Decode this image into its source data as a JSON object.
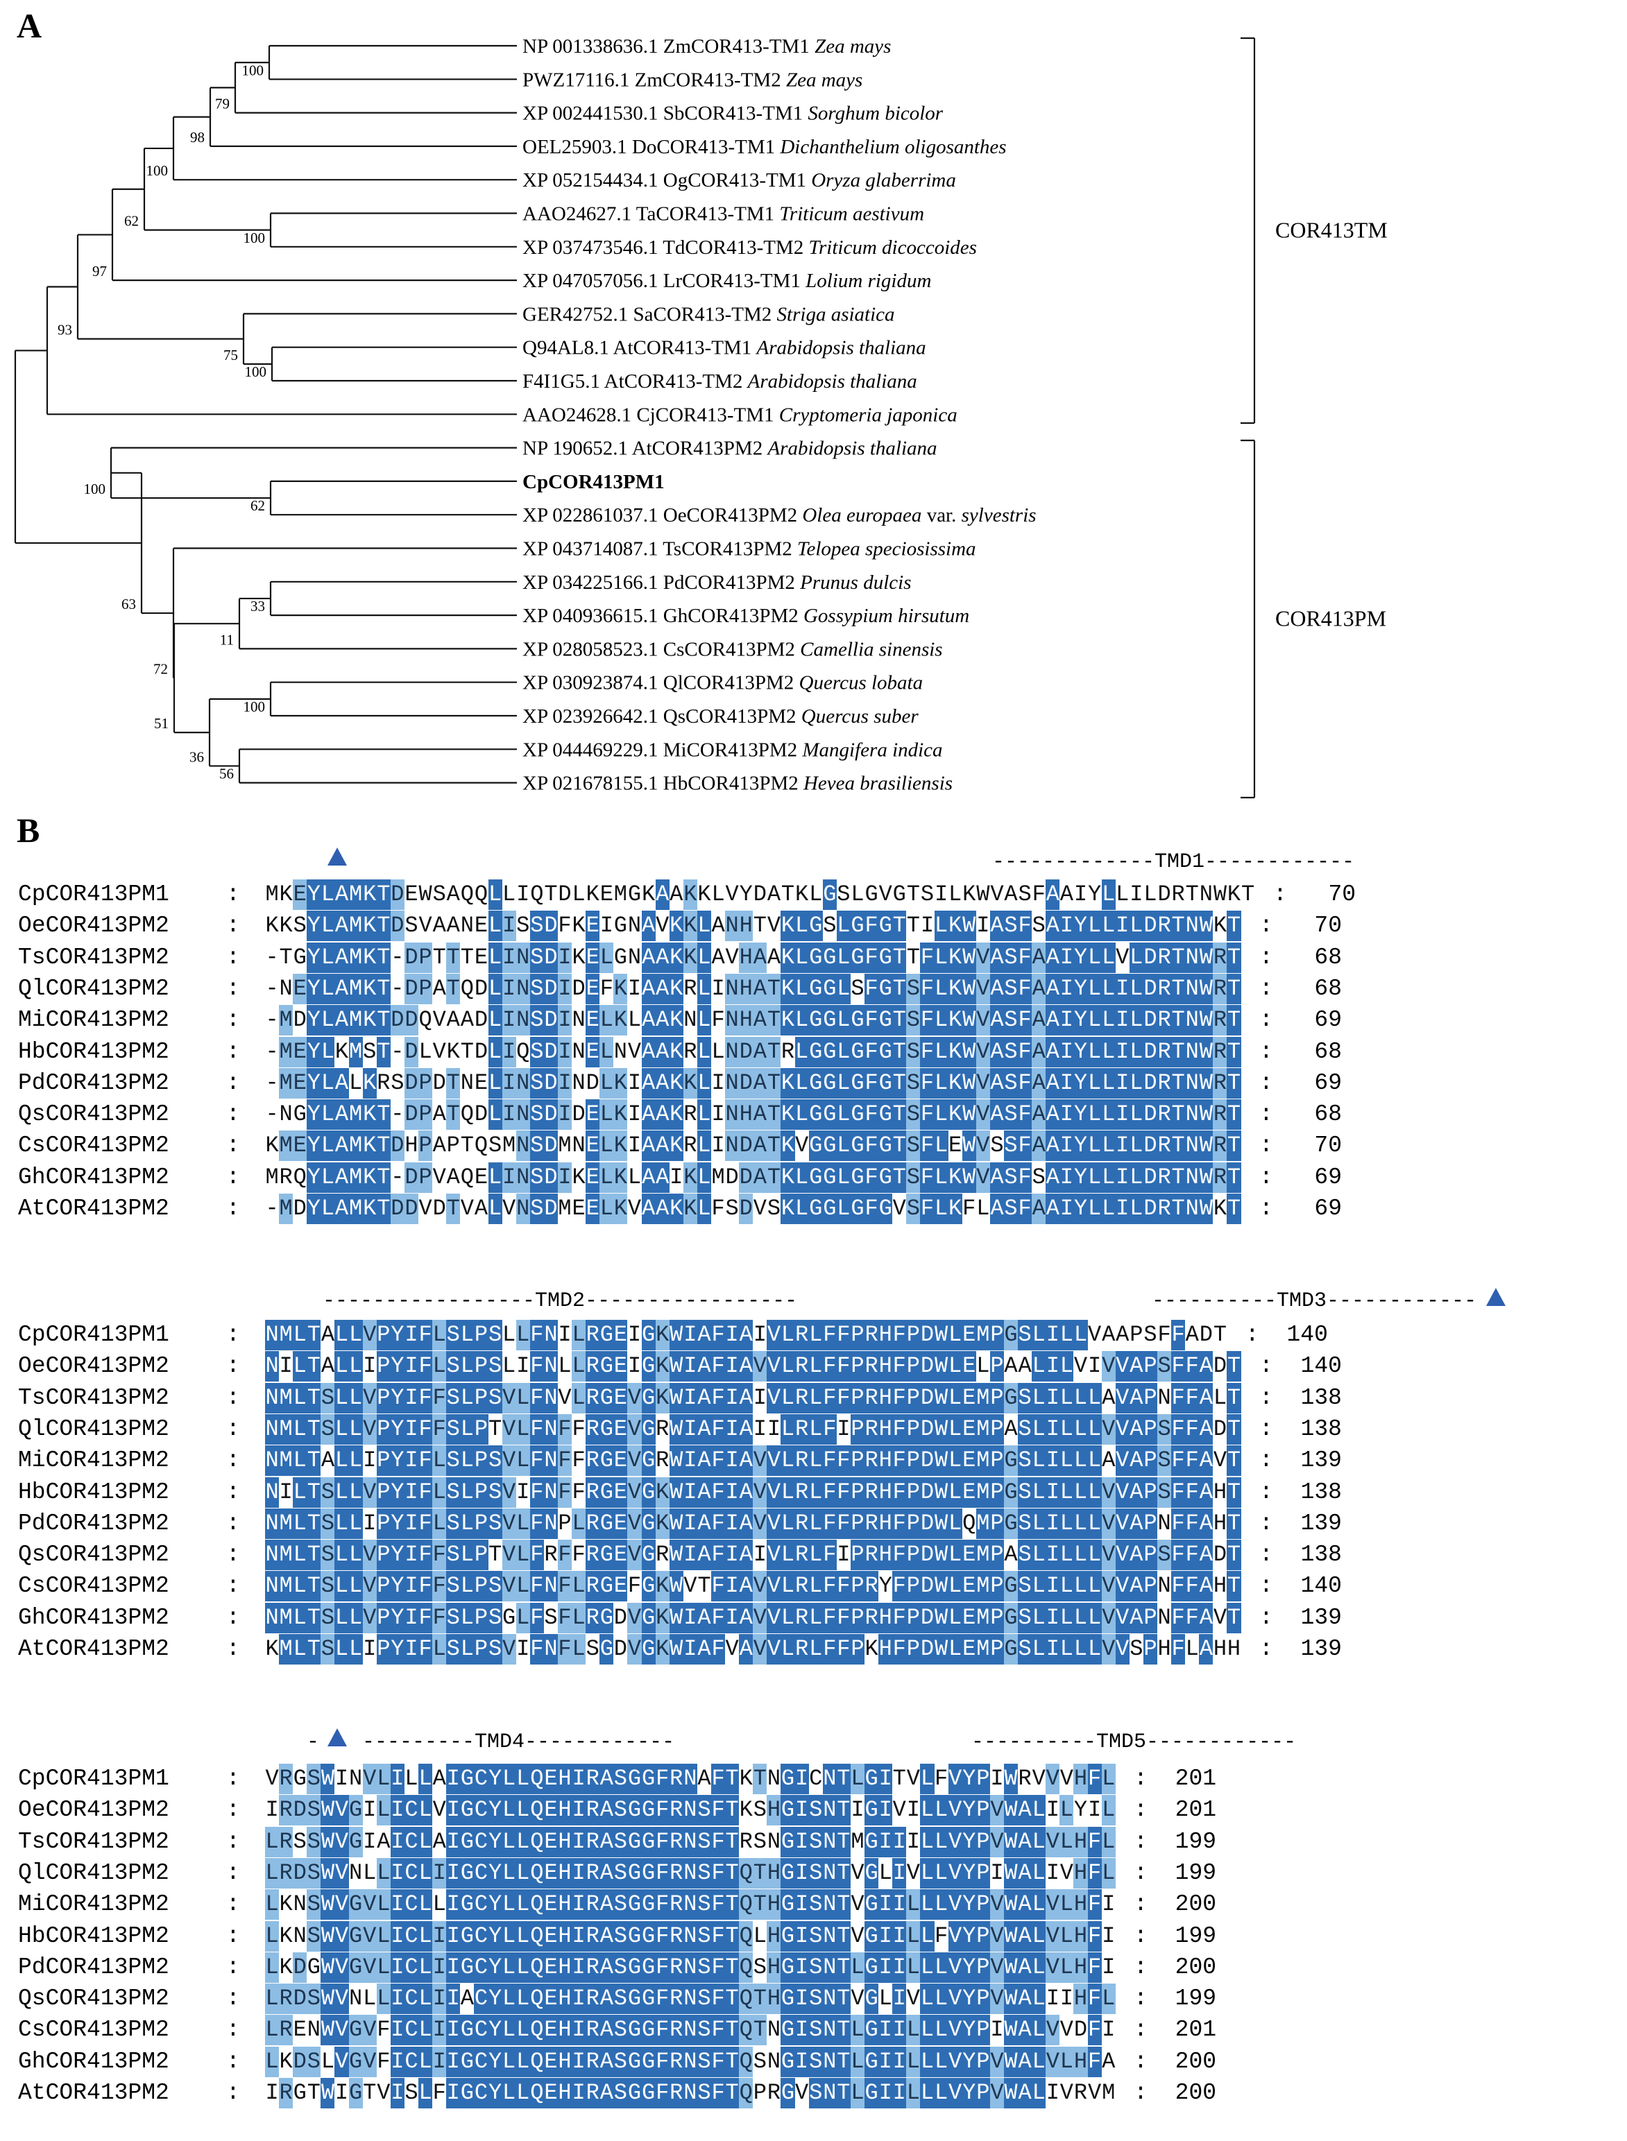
{
  "figure": {
    "panel_a_label": "A",
    "panel_b_label": "B",
    "groups": {
      "tm_label": "COR413TM",
      "pm_label": "COR413PM"
    }
  },
  "tree": {
    "leaves": [
      {
        "acc": "NP 001338636.1",
        "gene": "ZmCOR413-TM1",
        "species": "Zea mays"
      },
      {
        "acc": "PWZ17116.1",
        "gene": "ZmCOR413-TM2",
        "species": "Zea mays"
      },
      {
        "acc": "XP 002441530.1",
        "gene": "SbCOR413-TM1",
        "species": "Sorghum bicolor"
      },
      {
        "acc": "OEL25903.1",
        "gene": "DoCOR413-TM1",
        "species": "Dichanthelium oligosanthes"
      },
      {
        "acc": "XP 052154434.1",
        "gene": "OgCOR413-TM1",
        "species": "Oryza glaberrima"
      },
      {
        "acc": "AAO24627.1",
        "gene": "TaCOR413-TM1",
        "species": "Triticum aestivum"
      },
      {
        "acc": "XP 037473546.1",
        "gene": "TdCOR413-TM2",
        "species": "Triticum dicoccoides"
      },
      {
        "acc": "XP 047057056.1",
        "gene": "LrCOR413-TM1",
        "species": "Lolium rigidum"
      },
      {
        "acc": "GER42752.1",
        "gene": "SaCOR413-TM2",
        "species": "Striga asiatica"
      },
      {
        "acc": "Q94AL8.1",
        "gene": "AtCOR413-TM1",
        "species": "Arabidopsis thaliana"
      },
      {
        "acc": "F4I1G5.1",
        "gene": "AtCOR413-TM2",
        "species": "Arabidopsis thaliana"
      },
      {
        "acc": "AAO24628.1",
        "gene": "CjCOR413-TM1",
        "species": "Cryptomeria japonica"
      },
      {
        "acc": "NP 190652.1",
        "gene": "AtCOR413PM2",
        "species": "Arabidopsis thaliana"
      },
      {
        "acc": "",
        "gene": "CpCOR413PM1",
        "species": "",
        "bold": true
      },
      {
        "acc": "XP 022861037.1",
        "gene": "OeCOR413PM2",
        "species": "Olea europaea",
        "suffix": "var.",
        "species2": "sylvestris"
      },
      {
        "acc": "XP 043714087.1",
        "gene": "TsCOR413PM2",
        "species": "Telopea speciosissima"
      },
      {
        "acc": "XP 034225166.1",
        "gene": "PdCOR413PM2",
        "species": "Prunus dulcis"
      },
      {
        "acc": "XP 040936615.1",
        "gene": "GhCOR413PM2",
        "species": "Gossypium hirsutum"
      },
      {
        "acc": "XP 028058523.1",
        "gene": "CsCOR413PM2",
        "species": "Camellia sinensis"
      },
      {
        "acc": "XP 030923874.1",
        "gene": "QlCOR413PM2",
        "species": "Quercus lobata"
      },
      {
        "acc": "XP 023926642.1",
        "gene": "QsCOR413PM2",
        "species": "Quercus suber"
      },
      {
        "acc": "XP 044469229.1",
        "gene": "MiCOR413PM2",
        "species": "Mangifera indica"
      },
      {
        "acc": "XP 021678155.1",
        "gene": "HbCOR413PM2",
        "species": "Hevea brasiliensis"
      }
    ],
    "bootstrap": [
      "100",
      "79",
      "98",
      "100",
      "62",
      "100",
      "97",
      "93",
      "75",
      "100",
      "100",
      "62",
      "63",
      "72",
      "33",
      "11",
      "51",
      "100",
      "36",
      "56"
    ]
  },
  "alignment": {
    "names": [
      "CpCOR413PM1",
      "OeCOR413PM2",
      "TsCOR413PM2",
      "QlCOR413PM2",
      "MiCOR413PM2",
      "HbCOR413PM2",
      "PdCOR413PM2",
      "QsCOR413PM2",
      "CsCOR413PM2",
      "GhCOR413PM2",
      "AtCOR413PM2"
    ],
    "blocks": [
      {
        "tmd_labels": [
          "-------------TMD1------------"
        ],
        "ends": [
          "70",
          "70",
          "68",
          "68",
          "69",
          "68",
          "69",
          "68",
          "70",
          "69",
          "69"
        ],
        "seqs": [
          "MKEYLAMKTDEWSAQQLLIQTDLKEMGKAAKKLVYDATKLGSLGVGTSILKWVASFAAIYLLILDRTNWKT",
          "KKSYLAMKTDSVAANELISSDFKEIGNAVKKLANHTVKLGSLGFGTTILKWIASFSAIYLLILDRTNWKT",
          "-TGYLAMKT-DPTTTELINSDIKELGNAAKKLAVHAAKLGGLGFGTTFLKWVASFAAIYLLVLDRTNWRT",
          "-NEYLAMKT-DPATQDLINSDIDEFKIAAKRLINHATKLGGLSFGTSFLKWVASFAAIYLLILDRTNWRT",
          "-MDYLAMKTDDQVAADLINSDINELKLAAKNLFNHATKLGGLGFGTSFLKWVASFAAIYLLILDRTNWRT",
          "-MEYLKMST-DLVKTDLIQSDINELNVAAKRLLNDATRLGGLGFGTSFLKWVASFAAIYLLILDRTNWRT",
          "-MEYLALKRSDPDTNELINSDINDLKIAAKKLINDATKLGGLGFGTSFLKWVASFAAIYLLILDRTNWRT",
          "-NGYLAMKT-DPATQDLINSDIDELKIAAKRLINHATKLGGLGFGTSFLKWVASFAAIYLLILDRTNWRT",
          "KMEYLAMKTDHPAPTQSMNSDMNELKIAAKRLINDATKVGGLGFGTSFLEWVSSFAAIYLLILDRTNWRT",
          "MRQYLAMKT-DPVAQELINSDIKELKLAAIKLMDDATKLGGLGFGTSFLKWVASFSAIYLLILDRTNWRT",
          "-MDYLAMKTDDVDTVALVNSDMEELKVAAKKLFSDVSKLGGLGFGVSFLKFLASFAAIYLLILDRTNWKT"
        ]
      },
      {
        "tmd_labels": [
          "-----------------TMD2-----------------",
          "----------TMD3------------"
        ],
        "ends": [
          "140",
          "140",
          "138",
          "138",
          "139",
          "138",
          "139",
          "138",
          "140",
          "139",
          "139"
        ],
        "seqs": [
          "NMLTALLVPYIFLSLPSLLFNILRGEIGKWIAFIAIVLRLFFPRHFPDWLEMPGSLILLVAAPSFFADT",
          "NILTALLIPYIFLSLPSLIFNLLRGEIGKWIAFIAVVLRLFFPRHFPDWLELPAALILVIVVAPSFFADT",
          "NMLTSLLVPYIFFSLPSVLFNVLRGEVGKWIAFIAIVLRLFFPRHFPDWLEMPGSLILLLAVAPNFFALT",
          "NMLTSLLVPYIFFSLPTVLFNFFRGEVGRWIAFIAIILRLFIPRHFPDWLEMPASLILLLVVAPSFFADT",
          "NMLTALLIPYIFLSLPSVLFNFFRGEVGRWIAFIAVVLRLFFPRHFPDWLEMPGSLILLLAVAPSFFAVT",
          "NILTSLLVPYIFLSLPSVIFNFFRGEVGKWIAFIAVVLRLFFPRHFPDWLEMPGSLILLLVVAPSFFAHT",
          "NMLTSLLIPYIFLSLPSVLFNPLRGEVGKWIAFIAVVLRLFFPRHFPDWLQMPGSLILLLVVAPNFFAHT",
          "NMLTSLLVPYIFFSLPTVLFRFFRGEVGRWIAFIAIVLRLFIPRHFPDWLEMPASLILLLVVAPSFFADT",
          "NMLTSLLVPYIFFSLPSVLFNFLRGEFGKWVTFIAVVLRLFFPRYFPDWLEMPGSLILLLVVAPNFFAHT",
          "NMLTSLLVPYIFFSLPSGLFSFLRGDVGKWIAFIAVVLRLFFPRHFPDWLEMPGSLILLLVVAPNFFAVT",
          "KMLTSLLIPYIFLSLPSVIFNFLSGDVGKWIAFVAVVLRLFFPKHFPDWLEMPGSLILLLVVSPHFLAHH"
        ]
      },
      {
        "tmd_labels": [
          "-",
          "---------TMD4------------",
          "----------TMD5------------"
        ],
        "ends": [
          "201",
          "201",
          "199",
          "199",
          "200",
          "199",
          "200",
          "199",
          "201",
          "200",
          "200"
        ],
        "seqs": [
          "VRGSWINVLILLAIGCYLLQEHIRASGGFRNAFTKTNGICNTLGITVLFVYPIWRVVVHFL",
          "IRDSWVGILICLVIGCYLLQEHIRASGGFRNSFTKSHGISNTIGIVILLVYPVWALILYIL",
          "LRSSWVGIAICLAIGCYLLQEHIRASGGFRNSFTRSNGISNTMGIIILLVYPVWALVLHFL",
          "LRDSWVNLLICLIIGCYLLQEHIRASGGFRNSFTQTHGISNTVGLIVLLVYPIWALIVHFL",
          "LKNSWVGVLICLLIGCYLLQEHIRASGGFRNSFTQTHGISNTVGIILLLVYPVWALVLHFI",
          "LKNSWVGVLICLIIGCYLLQEHIRASGGFRNSFTQLHGISNTVGIILLFVYPVWALVLHFI",
          "LKDGWVGVLICLIIGCYLLQEHIRASGGFRNSFTQSHGISNTLGIILLLVYPVWALVLHFI",
          "LRDSWVNLLICLIIACYLLQEHIRASGGFRNSFTQTHGISNTVGLIVLLVYPVWALIIHFL",
          "LRENWVGVFICLIIGCYLLQEHIRASGGFRNSFTQTNGISNTLGIILLLVYPIWALVVDFI",
          "LKDSLVGVFICLIIGCYLLQEHIRASGGFRNSFTQSNGISNTLGIILLLVYPVWALVLHFA",
          "IRGTWIGTVISLFIGCYLLQEHIRASGGFRNSFTQPRGVSNTLGIILLLVYPVWALIVRVM"
        ]
      }
    ]
  }
}
